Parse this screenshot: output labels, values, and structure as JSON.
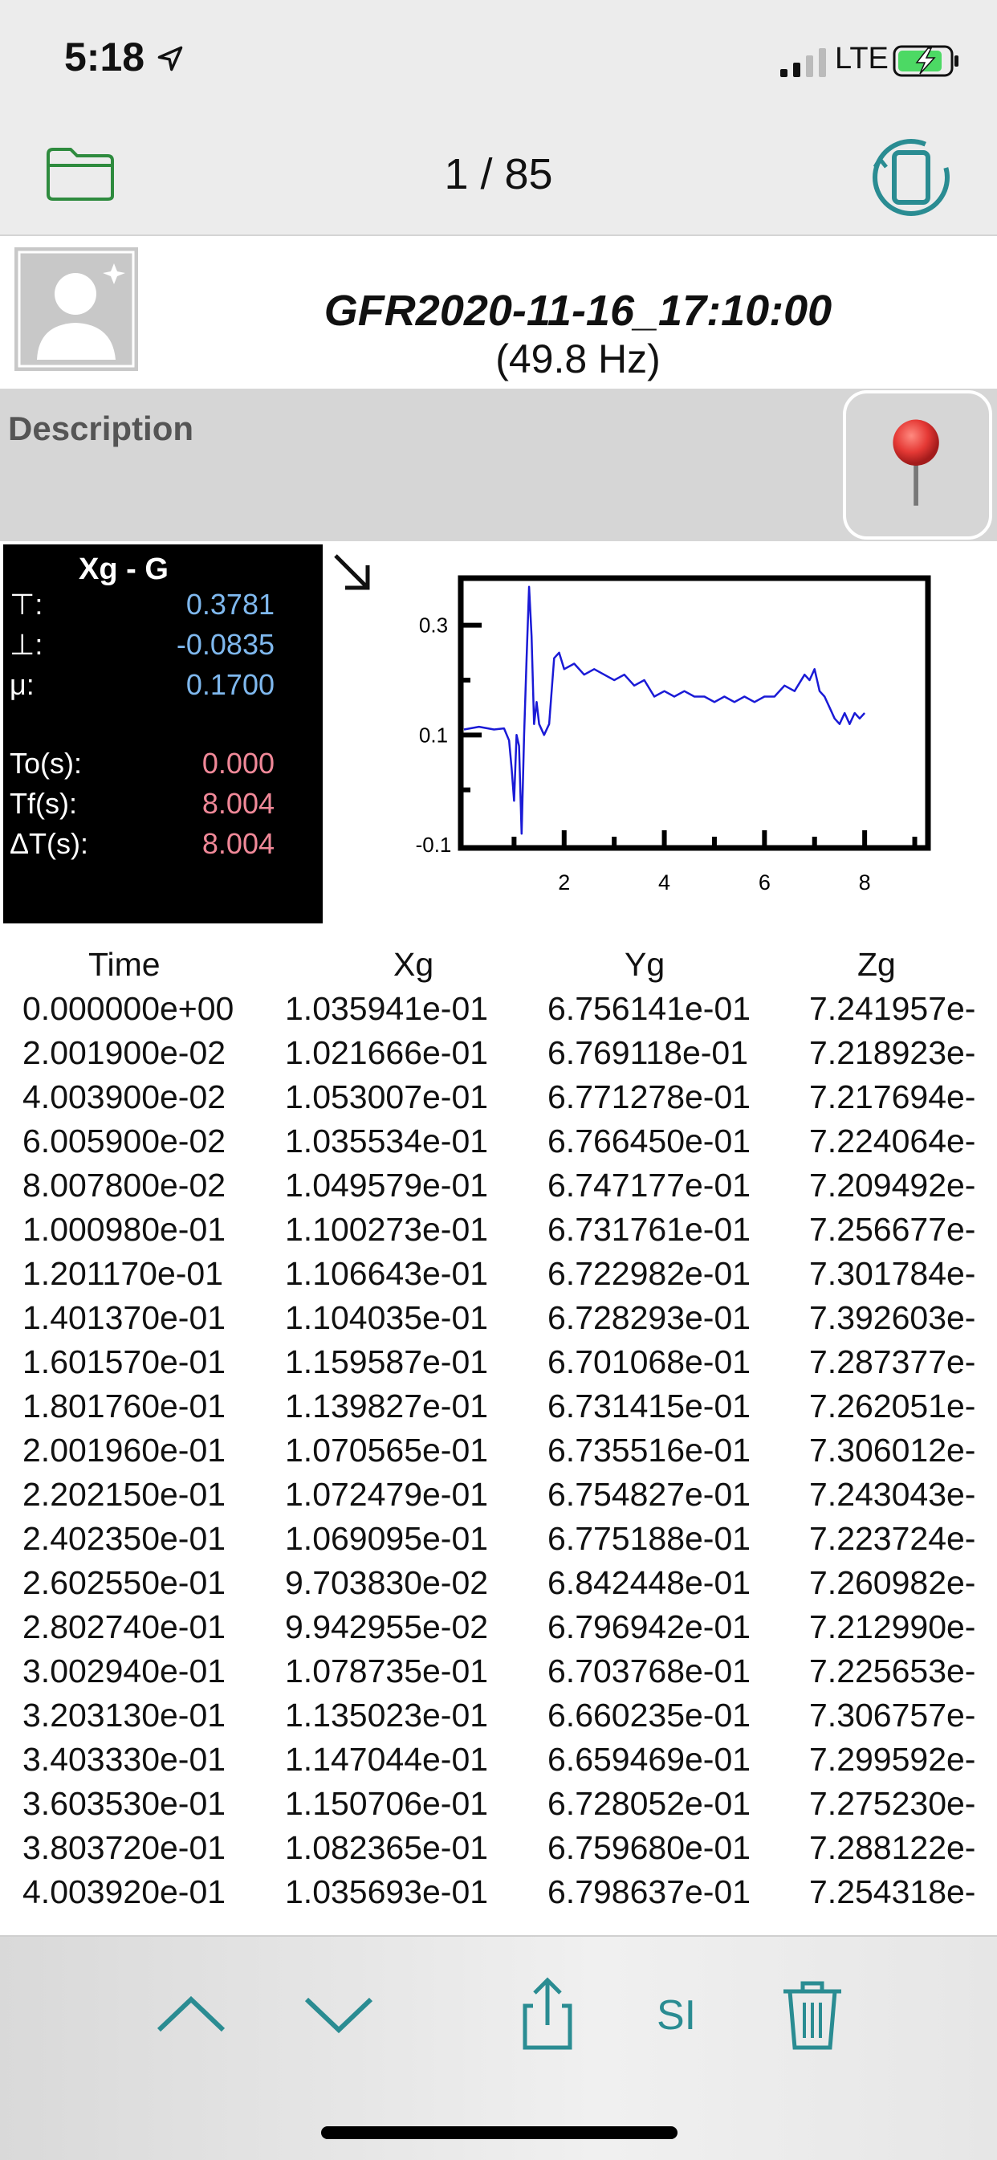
{
  "status": {
    "time": "5:18",
    "network": "LTE"
  },
  "nav": {
    "page_counter": "1 / 85"
  },
  "header": {
    "title": "GFR2020-11-16_17:10:00",
    "frequency": "(49.8 Hz)"
  },
  "description": {
    "label": "Description"
  },
  "stats": {
    "title": "Xg - G",
    "rows": [
      {
        "label": "⊤:",
        "value": "0.3781",
        "color": "blue"
      },
      {
        "label": "⊥:",
        "value": "-0.0835",
        "color": "blue"
      },
      {
        "label": "μ:",
        "value": "0.1700",
        "color": "blue"
      },
      {
        "label": "To(s):",
        "value": "0.000",
        "color": "pink"
      },
      {
        "label": "Tf(s):",
        "value": "8.004",
        "color": "pink"
      },
      {
        "label": "ΔT(s):",
        "value": "8.004",
        "color": "pink"
      }
    ]
  },
  "chart_data": {
    "type": "line",
    "xlim": [
      0,
      9.2
    ],
    "ylim": [
      -0.1,
      0.38
    ],
    "xticks": [
      2,
      4,
      6,
      8
    ],
    "yticks": [
      0.3,
      0.1,
      -0.1
    ],
    "ytick_labels": [
      "0.3",
      "0.1",
      "-0.1"
    ],
    "xtick_labels": [
      "2",
      "4",
      "6",
      "8"
    ],
    "line_color": "#1a1ad6",
    "series": [
      {
        "x": [
          0,
          0.3,
          0.6,
          0.8,
          0.9,
          0.95,
          1.0,
          1.05,
          1.1,
          1.15,
          1.2,
          1.25,
          1.3,
          1.35,
          1.4,
          1.45,
          1.5,
          1.6,
          1.7,
          1.8,
          1.9,
          2.0,
          2.2,
          2.4,
          2.6,
          2.8,
          3.0,
          3.2,
          3.4,
          3.6,
          3.8,
          4.0,
          4.2,
          4.4,
          4.6,
          4.8,
          5.0,
          5.2,
          5.4,
          5.6,
          5.8,
          6.0,
          6.2,
          6.4,
          6.6,
          6.8,
          6.9,
          7.0,
          7.1,
          7.2,
          7.3,
          7.4,
          7.5,
          7.6,
          7.7,
          7.8,
          7.9,
          8.0
        ],
        "y": [
          0.11,
          0.115,
          0.11,
          0.112,
          0.09,
          0.04,
          -0.02,
          0.1,
          0.08,
          -0.08,
          0.1,
          0.24,
          0.37,
          0.28,
          0.12,
          0.16,
          0.12,
          0.1,
          0.12,
          0.24,
          0.25,
          0.22,
          0.23,
          0.21,
          0.22,
          0.21,
          0.2,
          0.21,
          0.19,
          0.2,
          0.17,
          0.18,
          0.17,
          0.18,
          0.17,
          0.17,
          0.16,
          0.17,
          0.16,
          0.17,
          0.16,
          0.17,
          0.17,
          0.19,
          0.18,
          0.21,
          0.2,
          0.22,
          0.18,
          0.17,
          0.15,
          0.13,
          0.12,
          0.14,
          0.12,
          0.14,
          0.13,
          0.14
        ]
      }
    ]
  },
  "table": {
    "headers": [
      "Time",
      "Xg",
      "Yg",
      "Zg"
    ],
    "rows": [
      [
        "0.000000e+00",
        "1.035941e-01",
        "6.756141e-01",
        "7.241957e-"
      ],
      [
        "2.001900e-02",
        "1.021666e-01",
        "6.769118e-01",
        "7.218923e-"
      ],
      [
        "4.003900e-02",
        "1.053007e-01",
        "6.771278e-01",
        "7.217694e-"
      ],
      [
        "6.005900e-02",
        "1.035534e-01",
        "6.766450e-01",
        "7.224064e-"
      ],
      [
        "8.007800e-02",
        "1.049579e-01",
        "6.747177e-01",
        "7.209492e-"
      ],
      [
        "1.000980e-01",
        "1.100273e-01",
        "6.731761e-01",
        "7.256677e-"
      ],
      [
        "1.201170e-01",
        "1.106643e-01",
        "6.722982e-01",
        "7.301784e-"
      ],
      [
        "1.401370e-01",
        "1.104035e-01",
        "6.728293e-01",
        "7.392603e-"
      ],
      [
        "1.601570e-01",
        "1.159587e-01",
        "6.701068e-01",
        "7.287377e-"
      ],
      [
        "1.801760e-01",
        "1.139827e-01",
        "6.731415e-01",
        "7.262051e-"
      ],
      [
        "2.001960e-01",
        "1.070565e-01",
        "6.735516e-01",
        "7.306012e-"
      ],
      [
        "2.202150e-01",
        "1.072479e-01",
        "6.754827e-01",
        "7.243043e-"
      ],
      [
        "2.402350e-01",
        "1.069095e-01",
        "6.775188e-01",
        "7.223724e-"
      ],
      [
        "2.602550e-01",
        "9.703830e-02",
        "6.842448e-01",
        "7.260982e-"
      ],
      [
        "2.802740e-01",
        "9.942955e-02",
        "6.796942e-01",
        "7.212990e-"
      ],
      [
        "3.002940e-01",
        "1.078735e-01",
        "6.703768e-01",
        "7.225653e-"
      ],
      [
        "3.203130e-01",
        "1.135023e-01",
        "6.660235e-01",
        "7.306757e-"
      ],
      [
        "3.403330e-01",
        "1.147044e-01",
        "6.659469e-01",
        "7.299592e-"
      ],
      [
        "3.603530e-01",
        "1.150706e-01",
        "6.728052e-01",
        "7.275230e-"
      ],
      [
        "3.803720e-01",
        "1.082365e-01",
        "6.759680e-01",
        "7.288122e-"
      ],
      [
        "4.003920e-01",
        "1.035693e-01",
        "6.798637e-01",
        "7.254318e-"
      ]
    ]
  },
  "toolbar": {
    "si_label": "SI"
  },
  "colors": {
    "accent": "#2a8c92",
    "folder": "#2e8b3e",
    "stats_blue": "#7fb8ee",
    "stats_pink": "#f08898"
  }
}
